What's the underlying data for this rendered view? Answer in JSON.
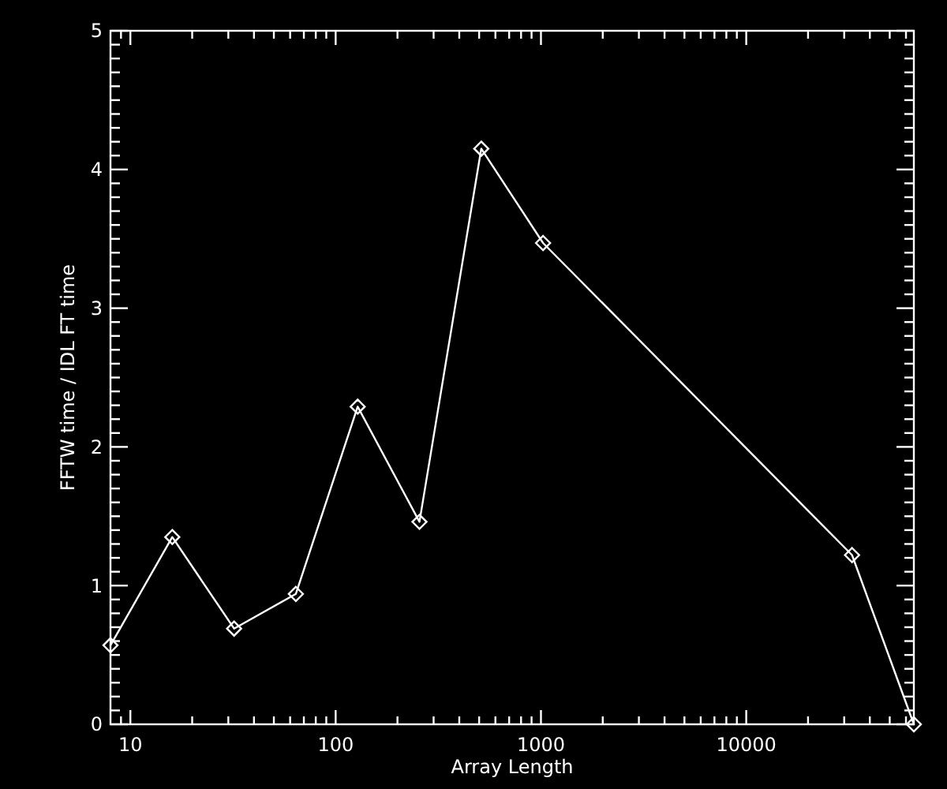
{
  "chart_data": {
    "type": "line",
    "xlabel": "Array Length",
    "ylabel": "FFTW time / IDL FT time",
    "log": "x",
    "x": [
      8,
      16,
      32,
      64,
      128,
      256,
      512,
      1024,
      32768,
      65536
    ],
    "series": [
      {
        "color": "#ffffff",
        "values": [
          0.57,
          1.35,
          0.69,
          0.94,
          2.29,
          1.46,
          4.15,
          3.47,
          1.22,
          0
        ]
      }
    ],
    "xlim": [
      8,
      65536
    ],
    "ylim": [
      0,
      5
    ],
    "xticks": [
      {
        "value": 9,
        "label": null
      },
      10,
      {
        "value": 20,
        "label": null
      },
      {
        "value": 30,
        "label": null
      },
      {
        "value": 40,
        "label": null
      },
      {
        "value": 50,
        "label": null
      },
      {
        "value": 60,
        "label": null
      },
      {
        "value": 70,
        "label": null
      },
      {
        "value": 80,
        "label": null
      },
      {
        "value": 90,
        "label": null
      },
      100,
      {
        "value": 200,
        "label": null
      },
      {
        "value": 300,
        "label": null
      },
      {
        "value": 400,
        "label": null
      },
      {
        "value": 500,
        "label": null
      },
      {
        "value": 600,
        "label": null
      },
      {
        "value": 700,
        "label": null
      },
      {
        "value": 800,
        "label": null
      },
      {
        "value": 900,
        "label": null
      },
      1000,
      {
        "value": 2000,
        "label": null
      },
      {
        "value": 3000,
        "label": null
      },
      {
        "value": 4000,
        "label": null
      },
      {
        "value": 5000,
        "label": null
      },
      {
        "value": 6000,
        "label": null
      },
      {
        "value": 7000,
        "label": null
      },
      {
        "value": 8000,
        "label": null
      },
      {
        "value": 9000,
        "label": null
      },
      10000,
      {
        "value": 20000,
        "label": null
      },
      {
        "value": 30000,
        "label": null
      },
      {
        "value": 40000,
        "label": null
      },
      {
        "value": 50000,
        "label": null
      },
      {
        "value": 60000,
        "label": null
      }
    ],
    "yticks": [
      0,
      {
        "value": 0.1,
        "label": null
      },
      {
        "value": 0.2,
        "label": null
      },
      {
        "value": 0.3,
        "label": null
      },
      {
        "value": 0.4,
        "label": null
      },
      {
        "value": 0.5,
        "label": null
      },
      {
        "value": 0.6,
        "label": null
      },
      {
        "value": 0.7,
        "label": null
      },
      {
        "value": 0.8,
        "label": null
      },
      {
        "value": 0.9,
        "label": null
      },
      1,
      {
        "value": 1.1,
        "label": null
      },
      {
        "value": 1.2,
        "label": null
      },
      {
        "value": 1.3,
        "label": null
      },
      {
        "value": 1.4,
        "label": null
      },
      {
        "value": 1.5,
        "label": null
      },
      {
        "value": 1.6,
        "label": null
      },
      {
        "value": 1.7,
        "label": null
      },
      {
        "value": 1.8,
        "label": null
      },
      {
        "value": 1.9,
        "label": null
      },
      2,
      {
        "value": 2.1,
        "label": null
      },
      {
        "value": 2.2,
        "label": null
      },
      {
        "value": 2.3,
        "label": null
      },
      {
        "value": 2.4,
        "label": null
      },
      {
        "value": 2.5,
        "label": null
      },
      {
        "value": 2.6,
        "label": null
      },
      {
        "value": 2.7,
        "label": null
      },
      {
        "value": 2.8,
        "label": null
      },
      {
        "value": 2.9,
        "label": null
      },
      3,
      {
        "value": 3.1,
        "label": null
      },
      {
        "value": 3.2,
        "label": null
      },
      {
        "value": 3.3,
        "label": null
      },
      {
        "value": 3.4,
        "label": null
      },
      {
        "value": 3.5,
        "label": null
      },
      {
        "value": 3.6,
        "label": null
      },
      {
        "value": 3.7,
        "label": null
      },
      {
        "value": 3.8,
        "label": null
      },
      {
        "value": 3.9,
        "label": null
      },
      4,
      {
        "value": 4.1,
        "label": null
      },
      {
        "value": 4.2,
        "label": null
      },
      {
        "value": 4.3,
        "label": null
      },
      {
        "value": 4.4,
        "label": null
      },
      {
        "value": 4.5,
        "label": null
      },
      {
        "value": 4.6,
        "label": null
      },
      {
        "value": 4.7,
        "label": null
      },
      {
        "value": 4.8,
        "label": null
      },
      {
        "value": 4.9,
        "label": null
      },
      5
    ],
    "marker": "diamond",
    "line_style": "solid"
  }
}
